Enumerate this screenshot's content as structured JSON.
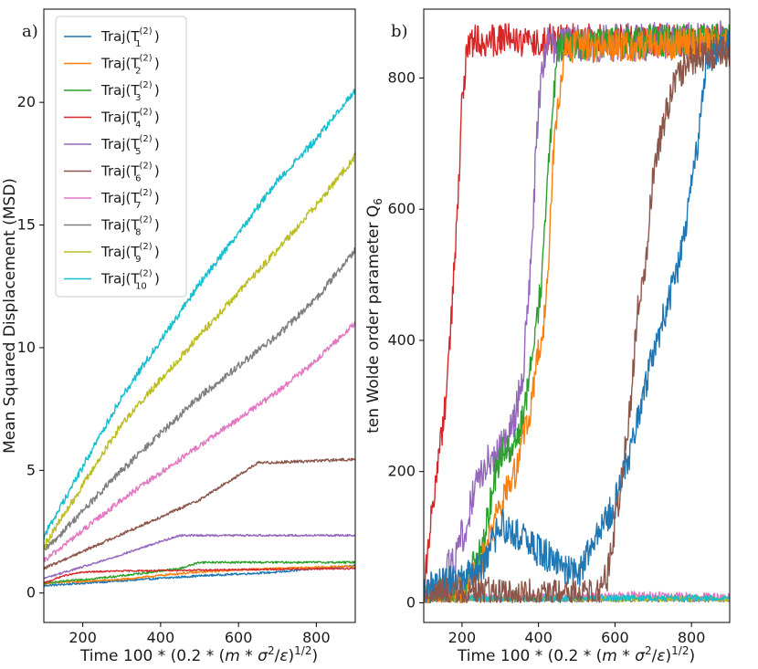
{
  "chart_data": [
    {
      "type": "line",
      "panel_label": "a)",
      "xlabel": "Time 100 * (0.2 * (m * σ²/ε)^(1/2))",
      "ylabel": "Mean Squared Displacement (MSD)",
      "xlim": [
        100,
        900
      ],
      "ylim": [
        -1.2,
        23.8
      ],
      "xticks": [
        200,
        400,
        600,
        800
      ],
      "yticks": [
        0,
        5,
        10,
        15,
        20
      ],
      "grid": false,
      "legend": {
        "placement": "top-left",
        "entries": [
          {
            "label": "Traj(T",
            "sub": "1",
            "sup": "(2)",
            "color": "#1f77b4"
          },
          {
            "label": "Traj(T",
            "sub": "2",
            "sup": "(2)",
            "color": "#ff7f0e"
          },
          {
            "label": "Traj(T",
            "sub": "3",
            "sup": "(2)",
            "color": "#2ca02c"
          },
          {
            "label": "Traj(T",
            "sub": "4",
            "sup": "(2)",
            "color": "#d62728"
          },
          {
            "label": "Traj(T",
            "sub": "5",
            "sup": "(2)",
            "color": "#9467bd"
          },
          {
            "label": "Traj(T",
            "sub": "6",
            "sup": "(2)",
            "color": "#8c564b"
          },
          {
            "label": "Traj(T",
            "sub": "7",
            "sup": "(2)",
            "color": "#e377c2"
          },
          {
            "label": "Traj(T",
            "sub": "8",
            "sup": "(2)",
            "color": "#7f7f7f"
          },
          {
            "label": "Traj(T",
            "sub": "9",
            "sup": "(2)",
            "color": "#bcbd22"
          },
          {
            "label": "Traj(T",
            "sub": "10",
            "sup": "(2)",
            "color": "#17becf"
          }
        ]
      },
      "series": [
        {
          "color": "#1f77b4",
          "x": [
            100,
            300,
            500,
            700,
            800,
            900
          ],
          "y": [
            0.3,
            0.5,
            0.7,
            0.85,
            1.0,
            1.1
          ],
          "noise": 0.04
        },
        {
          "color": "#ff7f0e",
          "x": [
            100,
            300,
            450,
            600,
            800,
            900
          ],
          "y": [
            0.4,
            0.55,
            0.8,
            0.95,
            1.05,
            1.1
          ],
          "noise": 0.04
        },
        {
          "color": "#2ca02c",
          "x": [
            100,
            300,
            450,
            500,
            700,
            900
          ],
          "y": [
            0.4,
            0.7,
            1.0,
            1.25,
            1.25,
            1.25
          ],
          "noise": 0.04
        },
        {
          "color": "#d62728",
          "x": [
            100,
            150,
            200,
            300,
            600,
            900
          ],
          "y": [
            0.4,
            0.7,
            0.85,
            0.9,
            0.95,
            1.0
          ],
          "noise": 0.03
        },
        {
          "color": "#9467bd",
          "x": [
            100,
            250,
            400,
            450,
            700,
            900
          ],
          "y": [
            0.6,
            1.3,
            2.1,
            2.35,
            2.35,
            2.35
          ],
          "noise": 0.04
        },
        {
          "color": "#8c564b",
          "x": [
            100,
            300,
            500,
            600,
            650,
            900
          ],
          "y": [
            1.0,
            2.4,
            3.8,
            4.8,
            5.3,
            5.45
          ],
          "noise": 0.06
        },
        {
          "color": "#e377c2",
          "x": [
            100,
            300,
            500,
            700,
            800,
            900
          ],
          "y": [
            1.3,
            3.8,
            6.0,
            8.2,
            9.5,
            11.0
          ],
          "noise": 0.12
        },
        {
          "color": "#7f7f7f",
          "x": [
            100,
            300,
            500,
            700,
            800,
            900
          ],
          "y": [
            1.7,
            5.0,
            8.0,
            10.5,
            12.0,
            14.0
          ],
          "noise": 0.15
        },
        {
          "color": "#bcbd22",
          "x": [
            100,
            300,
            500,
            700,
            800,
            900
          ],
          "y": [
            1.9,
            6.9,
            10.5,
            14.0,
            15.8,
            17.8
          ],
          "noise": 0.15
        },
        {
          "color": "#17becf",
          "x": [
            100,
            300,
            500,
            700,
            800,
            900
          ],
          "y": [
            2.3,
            8.0,
            12.6,
            16.8,
            18.5,
            20.5
          ],
          "noise": 0.15
        }
      ]
    },
    {
      "type": "line",
      "panel_label": "b)",
      "xlabel": "Time 100 * (0.2 * (m * σ²/ε)^(1/2))",
      "ylabel": "ten Wolde order parameter Q6",
      "xlim": [
        100,
        900
      ],
      "ylim": [
        -30,
        905
      ],
      "xticks": [
        200,
        400,
        600,
        800
      ],
      "yticks": [
        0,
        200,
        400,
        600,
        800
      ],
      "grid": false,
      "series": [
        {
          "color": "#7f7f7f",
          "x": [
            100,
            900
          ],
          "y": [
            5,
            5
          ],
          "noise": 4
        },
        {
          "color": "#e377c2",
          "x": [
            100,
            500,
            650,
            900
          ],
          "y": [
            8,
            8,
            12,
            8
          ],
          "noise": 6
        },
        {
          "color": "#bcbd22",
          "x": [
            100,
            900
          ],
          "y": [
            6,
            6
          ],
          "noise": 4
        },
        {
          "color": "#17becf",
          "x": [
            100,
            900
          ],
          "y": [
            7,
            7
          ],
          "noise": 5
        },
        {
          "color": "#d62728",
          "x": [
            100,
            120,
            160,
            185,
            200,
            215,
            240,
            900
          ],
          "y": [
            20,
            130,
            320,
            560,
            760,
            850,
            858,
            858
          ],
          "noise": 25
        },
        {
          "color": "#9467bd",
          "x": [
            100,
            150,
            200,
            250,
            300,
            340,
            360,
            380,
            400,
            420,
            900
          ],
          "y": [
            5,
            30,
            100,
            200,
            230,
            280,
            360,
            520,
            760,
            850,
            858
          ],
          "noise": 30
        },
        {
          "color": "#2ca02c",
          "x": [
            100,
            200,
            250,
            300,
            330,
            360,
            390,
            410,
            430,
            450,
            900
          ],
          "y": [
            5,
            20,
            80,
            230,
            240,
            280,
            400,
            500,
            700,
            850,
            860
          ],
          "noise": 25
        },
        {
          "color": "#ff7f0e",
          "x": [
            100,
            200,
            250,
            300,
            340,
            380,
            400,
            420,
            440,
            470,
            900
          ],
          "y": [
            5,
            10,
            60,
            150,
            200,
            300,
            380,
            450,
            700,
            848,
            852
          ],
          "noise": 25
        },
        {
          "color": "#1f77b4",
          "x": [
            100,
            250,
            300,
            400,
            500,
            550,
            600,
            650,
            700,
            750,
            780,
            820,
            840,
            900
          ],
          "y": [
            20,
            50,
            120,
            80,
            40,
            100,
            150,
            250,
            380,
            480,
            550,
            720,
            830,
            855
          ],
          "noise": 25
        },
        {
          "color": "#8c564b",
          "x": [
            100,
            200,
            400,
            550,
            580,
            600,
            620,
            640,
            660,
            680,
            700,
            730,
            760,
            800,
            900
          ],
          "y": [
            5,
            20,
            10,
            10,
            40,
            120,
            200,
            300,
            450,
            520,
            650,
            740,
            800,
            830,
            840
          ],
          "noise": 25
        }
      ]
    }
  ]
}
